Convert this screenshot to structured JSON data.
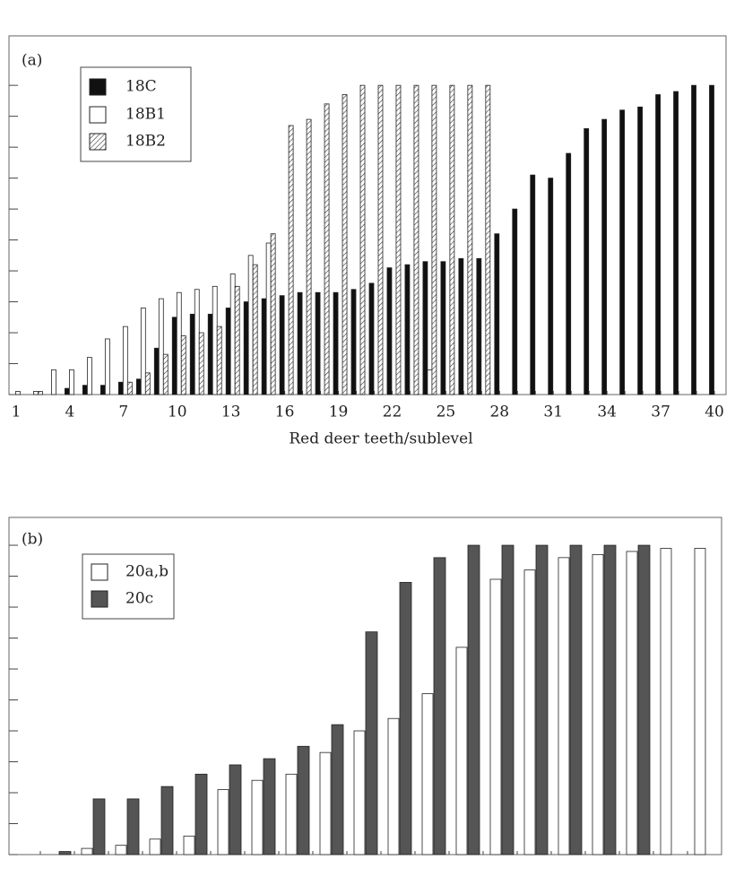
{
  "chart_data": [
    {
      "type": "bar",
      "panel": "(a)",
      "xlabel": "Red deer teeth/sublevel",
      "categories": [
        "1",
        null,
        null,
        "4",
        null,
        null,
        "7",
        null,
        null,
        "10",
        null,
        null,
        "13",
        null,
        null,
        "16",
        null,
        null,
        "19",
        null,
        null,
        "22",
        null,
        null,
        "25",
        null,
        null,
        "28",
        null,
        null,
        "31",
        null,
        null,
        "34",
        null,
        null,
        "37",
        null,
        null,
        "40"
      ],
      "series": [
        {
          "name": "18C",
          "color": "#111111",
          "values": [
            0,
            0,
            0,
            2,
            3,
            3,
            4,
            5,
            15,
            25,
            26,
            26,
            28,
            30,
            31,
            32,
            33,
            33,
            33,
            34,
            36,
            41,
            42,
            43,
            43,
            44,
            44,
            52,
            60,
            71,
            70,
            78,
            86,
            89,
            92,
            93,
            97,
            98,
            100,
            100
          ]
        },
        {
          "name": "18B1",
          "color": "#ffffff",
          "values": [
            1,
            1,
            8,
            8,
            12,
            18,
            22,
            28,
            31,
            33,
            34,
            35,
            39,
            45,
            49,
            null,
            null,
            null,
            null,
            null,
            null,
            null,
            null,
            8,
            null,
            null,
            null,
            null,
            null,
            null,
            null,
            null,
            null,
            null,
            null,
            null,
            null,
            null,
            null,
            null
          ]
        },
        {
          "name": "18B2",
          "color": "#ffffff",
          "pattern": "hatch",
          "values": [
            0,
            1,
            0,
            0,
            0,
            0,
            4,
            7,
            13,
            19,
            20,
            22,
            35,
            42,
            52,
            87,
            89,
            94,
            97,
            100,
            100,
            100,
            100,
            100,
            100,
            100,
            100,
            null,
            null,
            null,
            null,
            null,
            null,
            null,
            null,
            null,
            null,
            null,
            null,
            null
          ]
        }
      ],
      "ylim": [
        0,
        116
      ],
      "yticks": [
        0,
        10,
        20,
        30,
        40,
        50,
        60,
        70,
        80,
        90,
        100
      ]
    },
    {
      "type": "bar",
      "panel": "(b)",
      "categories": [
        null,
        null,
        null,
        null,
        null,
        null,
        null,
        null,
        null,
        null,
        null,
        null,
        null,
        null,
        null,
        null,
        null,
        null,
        null,
        null
      ],
      "series": [
        {
          "name": "20a,b",
          "color": "#ffffff",
          "values": [
            null,
            2,
            3,
            5,
            6,
            21,
            24,
            26,
            33,
            40,
            44,
            52,
            67,
            89,
            92,
            96,
            97,
            98,
            99,
            99
          ]
        },
        {
          "name": "20c",
          "color": "#555555",
          "values": [
            1,
            18,
            18,
            22,
            26,
            29,
            31,
            35,
            42,
            72,
            88,
            96,
            100,
            100,
            100,
            100,
            100,
            100,
            null,
            null
          ]
        }
      ],
      "ylim": [
        0,
        109
      ],
      "yticks": [
        0,
        10,
        20,
        30,
        40,
        50,
        60,
        70,
        80,
        90,
        100
      ]
    }
  ]
}
